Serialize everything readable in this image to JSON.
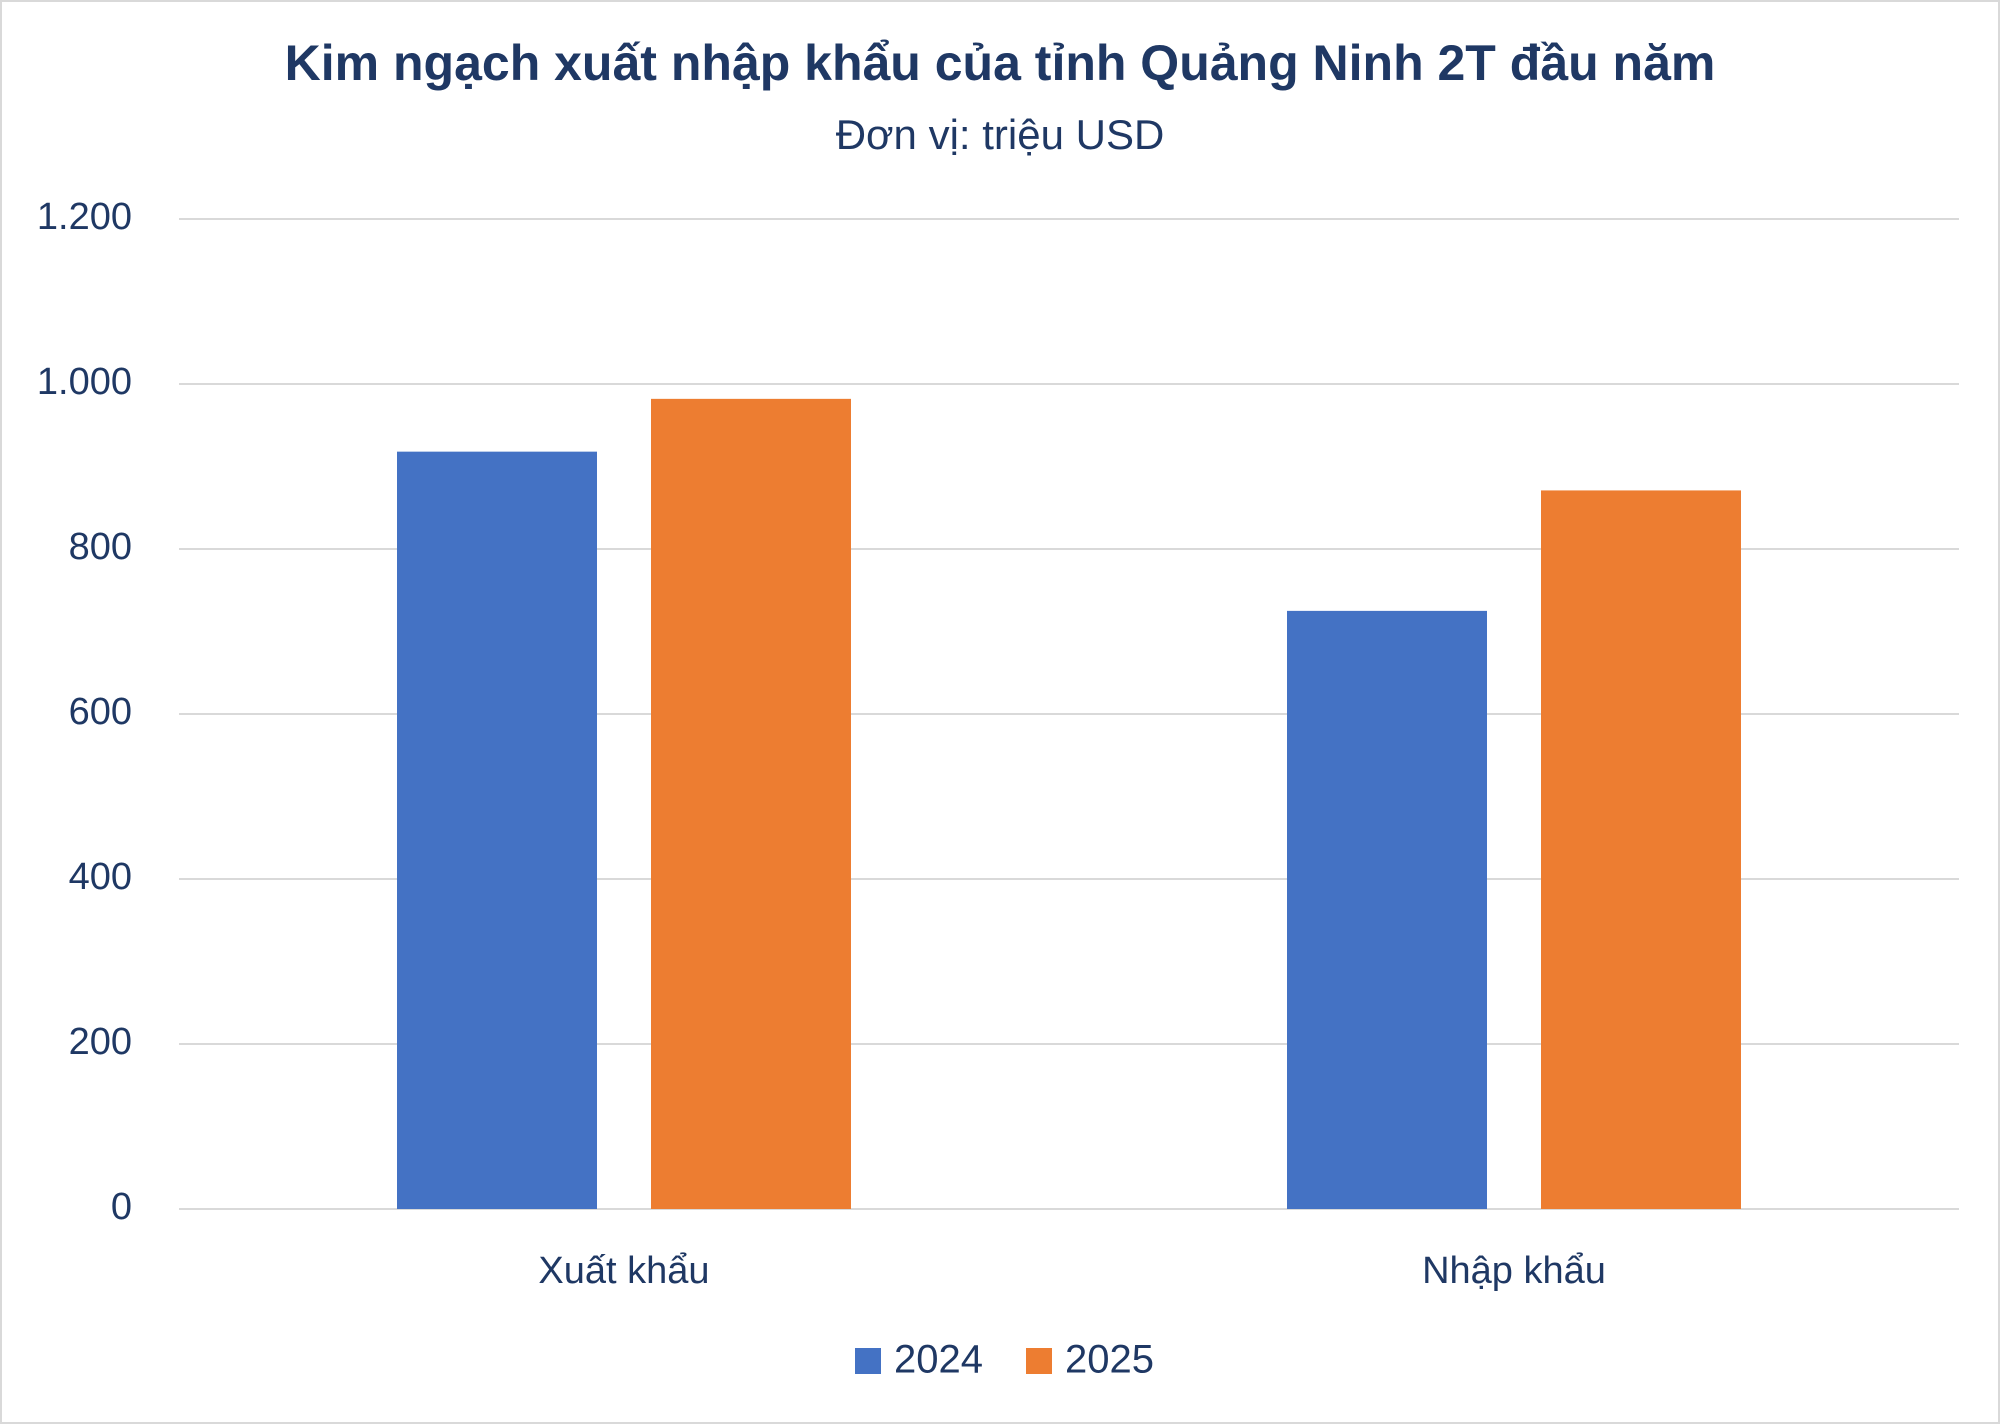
{
  "chart_data": {
    "type": "bar",
    "title": "Kim ngạch xuất nhập khẩu của tỉnh Quảng Ninh 2T đầu năm",
    "subtitle": "Đơn vị: triệu USD",
    "categories": [
      "Xuất khẩu",
      "Nhập khẩu"
    ],
    "series": [
      {
        "name": "2024",
        "color": "#4472c4",
        "values": [
          918,
          725
        ]
      },
      {
        "name": "2025",
        "color": "#ed7d31",
        "values": [
          982,
          871
        ]
      }
    ],
    "ylim": [
      0,
      1200
    ],
    "yticks": [
      0,
      200,
      400,
      600,
      800,
      {
        "value": 1000,
        "label": "1.000"
      },
      {
        "value": 1200,
        "label": "1.200"
      }
    ],
    "grid": true,
    "legend": "bottom"
  }
}
